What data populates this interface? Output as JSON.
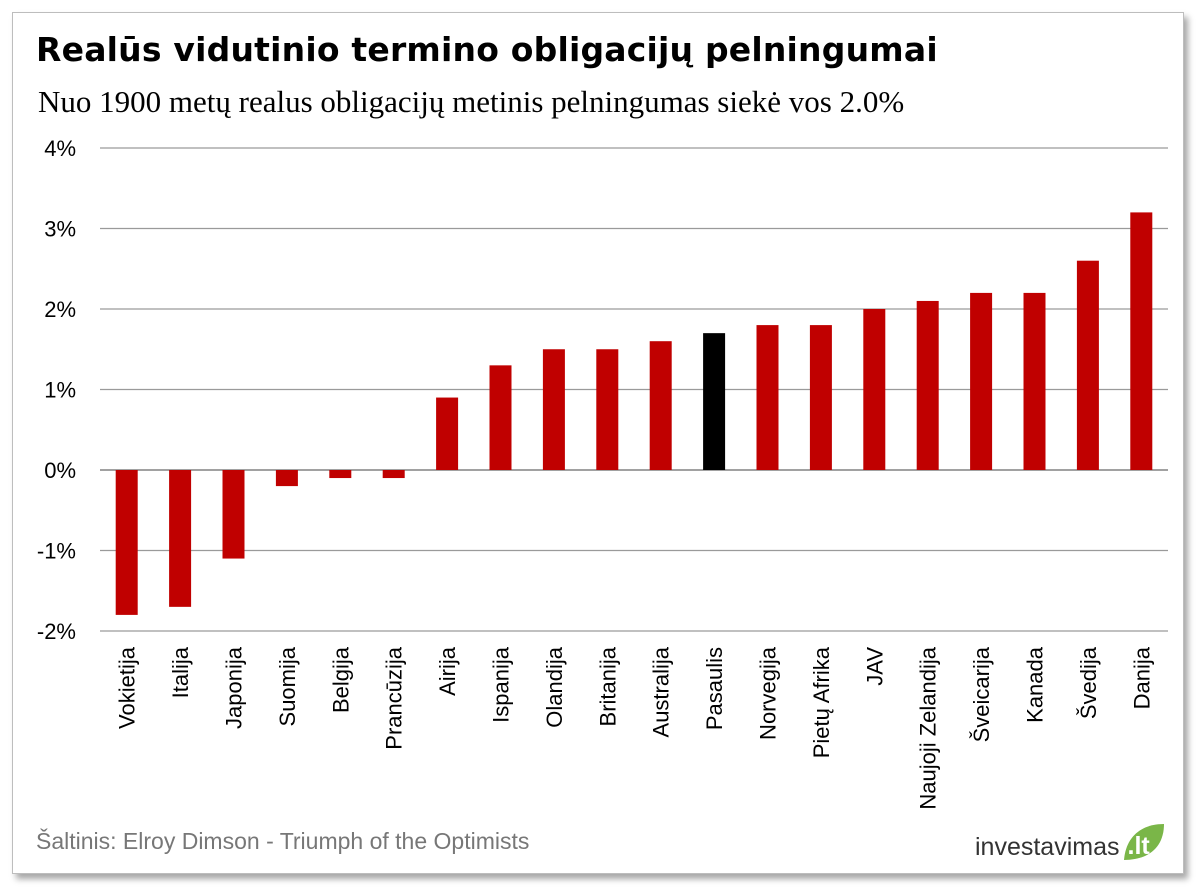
{
  "title": "Realūs vidutinio termino obligacijų pelningumai",
  "subtitle": "Nuo 1900 metų realus obligacijų  metinis pelningumas  siekė vos 2.0%",
  "source": "Šaltinis: Elroy Dimson - Triumph  of the Optimists",
  "logo": {
    "text": "investavimas",
    "suffix": ".lt"
  },
  "colors": {
    "bar": "#c00000",
    "highlight": "#000000",
    "grid": "#9a9a9a",
    "logo_green": "#7ab648"
  },
  "chart_data": {
    "type": "bar",
    "categories": [
      "Vokietija",
      "Italija",
      "Japonija",
      "Suomija",
      "Belgija",
      "Prancūzija",
      "Airija",
      "Ispanija",
      "Olandija",
      "Britanija",
      "Australija",
      "Pasaulis",
      "Norvegija",
      "Pietų Afrika",
      "JAV",
      "Naujoji Zelandija",
      "Šveicarija",
      "Kanada",
      "Švedija",
      "Danija"
    ],
    "values": [
      -1.8,
      -1.7,
      -1.1,
      -0.2,
      -0.1,
      -0.1,
      0.9,
      1.3,
      1.5,
      1.5,
      1.6,
      1.7,
      1.8,
      1.8,
      2.0,
      2.1,
      2.2,
      2.2,
      2.6,
      3.2
    ],
    "highlight_category": "Pasaulis",
    "ylim": [
      -2,
      4
    ],
    "yticks": [
      -2,
      -1,
      0,
      1,
      2,
      3,
      4
    ],
    "ytick_labels": [
      "-2%",
      "-1%",
      "0%",
      "1%",
      "2%",
      "3%",
      "4%"
    ],
    "grid": true,
    "legend": "none",
    "xlabel": "",
    "ylabel": ""
  }
}
